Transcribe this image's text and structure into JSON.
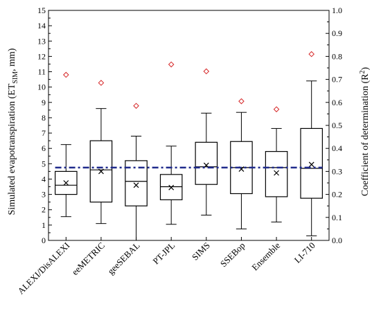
{
  "chart_data": {
    "type": "box",
    "categories": [
      "ALEXI/DisALEXI",
      "eeMETRIC",
      "geeSEBAL",
      "PT-JPL",
      "SIMS",
      "SSEBop",
      "Ensemble",
      "LI-710"
    ],
    "boxes": [
      {
        "whisker_low": 1.55,
        "q1": 3.0,
        "median": 3.6,
        "q3": 4.5,
        "whisker_high": 6.25,
        "mean": 3.75
      },
      {
        "whisker_low": 1.1,
        "q1": 2.5,
        "median": 4.6,
        "q3": 6.5,
        "whisker_high": 8.6,
        "mean": 4.5
      },
      {
        "whisker_low": 0.0,
        "q1": 2.25,
        "median": 3.85,
        "q3": 5.2,
        "whisker_high": 6.8,
        "mean": 3.6
      },
      {
        "whisker_low": 1.05,
        "q1": 2.65,
        "median": 3.5,
        "q3": 4.3,
        "whisker_high": 6.15,
        "mean": 3.45
      },
      {
        "whisker_low": 1.65,
        "q1": 3.65,
        "median": 4.8,
        "q3": 6.4,
        "whisker_high": 8.3,
        "mean": 4.9
      },
      {
        "whisker_low": 0.75,
        "q1": 3.05,
        "median": 4.75,
        "q3": 6.45,
        "whisker_high": 8.35,
        "mean": 4.65
      },
      {
        "whisker_low": 1.2,
        "q1": 2.85,
        "median": 4.75,
        "q3": 5.8,
        "whisker_high": 7.3,
        "mean": 4.4
      },
      {
        "whisker_low": 0.3,
        "q1": 2.75,
        "median": 4.7,
        "q3": 7.3,
        "whisker_high": 10.4,
        "mean": 4.95
      }
    ],
    "r2": [
      0.72,
      0.685,
      0.585,
      0.765,
      0.735,
      0.605,
      0.57,
      0.81
    ],
    "mean_line_y": 4.75,
    "ylabel_left": "Simulated evapotranspiration (ET",
    "ylabel_left_sub": "SIM",
    "ylabel_left_tail": ", mm)",
    "ylabel_right": "Coefficient of determination (R",
    "ylabel_right_sup": "2",
    "ylabel_right_tail": ")",
    "ylim_left": [
      0,
      15
    ],
    "ylim_right": [
      0,
      1.0
    ],
    "yticks_left": [
      "0",
      "1",
      "2",
      "3",
      "4",
      "5",
      "6",
      "7",
      "8",
      "9",
      "10",
      "11",
      "12",
      "13",
      "14",
      "15"
    ],
    "yticks_right": [
      "0.0",
      "0.1",
      "0.2",
      "0.3",
      "0.4",
      "0.5",
      "0.6",
      "0.7",
      "0.8",
      "0.9",
      "1.0"
    ],
    "colors": {
      "r2_marker": "#d62728",
      "mean_line": "#1f2a8c",
      "box": "#000000"
    }
  }
}
